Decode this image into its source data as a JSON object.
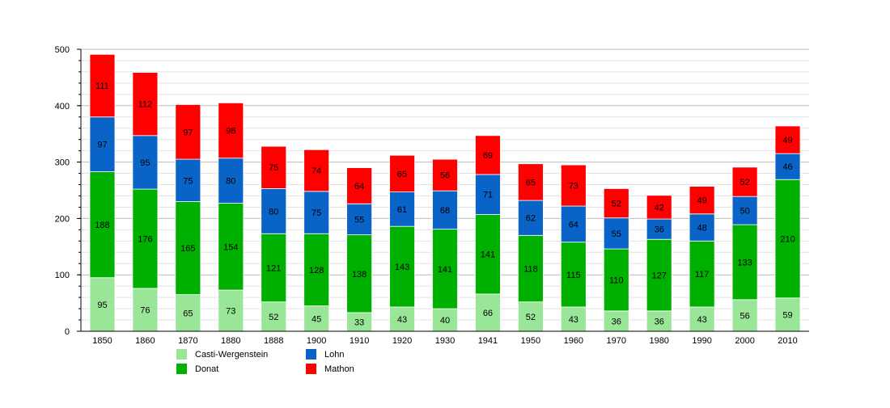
{
  "chart_data": {
    "type": "bar",
    "stacked": true,
    "categories": [
      "1850",
      "1860",
      "1870",
      "1880",
      "1888",
      "1900",
      "1910",
      "1920",
      "1930",
      "1941",
      "1950",
      "1960",
      "1970",
      "1980",
      "1990",
      "2000",
      "2010"
    ],
    "ylim": [
      0,
      500
    ],
    "yticks": [
      0,
      100,
      200,
      300,
      400,
      500
    ],
    "grid": true,
    "legend_position": "bottom-left",
    "series": [
      {
        "name": "Casti-Wergenstein",
        "color": "#99e699",
        "values": [
          95,
          76,
          65,
          73,
          52,
          45,
          33,
          43,
          40,
          66,
          52,
          43,
          36,
          36,
          43,
          56,
          59
        ]
      },
      {
        "name": "Donat",
        "color": "#00b000",
        "values": [
          188,
          176,
          165,
          154,
          121,
          128,
          138,
          143,
          141,
          141,
          118,
          115,
          110,
          127,
          117,
          133,
          210
        ]
      },
      {
        "name": "Lohn",
        "color": "#0a64c8",
        "values": [
          97,
          95,
          75,
          80,
          80,
          75,
          55,
          61,
          68,
          71,
          62,
          64,
          55,
          36,
          48,
          50,
          46
        ]
      },
      {
        "name": "Mathon",
        "color": "#ff0000",
        "values": [
          111,
          112,
          97,
          98,
          75,
          74,
          64,
          65,
          56,
          69,
          65,
          73,
          52,
          42,
          49,
          52,
          49
        ]
      }
    ]
  }
}
